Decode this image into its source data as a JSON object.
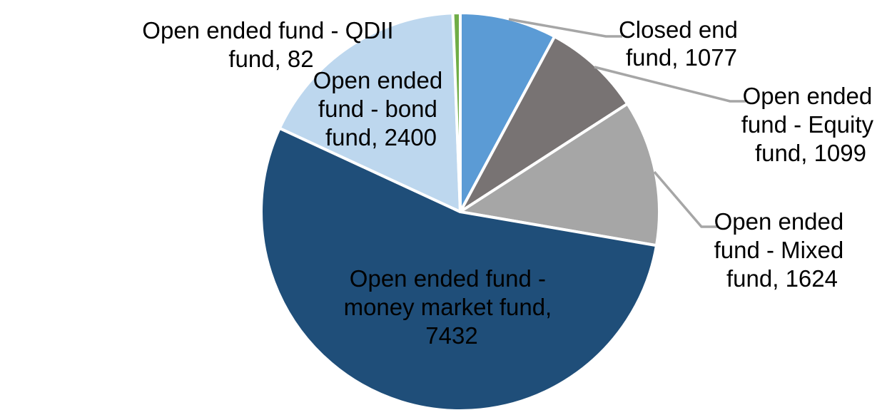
{
  "chart_data": {
    "type": "pie",
    "title": "",
    "total": 13714,
    "start_angle_deg": 0,
    "direction": "clockwise",
    "legend_position": "none",
    "separator_color": "#FFFFFF",
    "leader_line_color": "#A6A6A6",
    "segments": [
      {
        "label": "Closed end fund",
        "value": 1077,
        "color": "#5B9BD5",
        "label_color": "#000000",
        "label_lines": [
          "Closed end",
          "fund, 1077"
        ]
      },
      {
        "label": "Open ended fund - Equity fund",
        "value": 1099,
        "color": "#787373",
        "label_color": "#000000",
        "label_lines": [
          "Open ended",
          "fund - Equity",
          "fund, 1099"
        ]
      },
      {
        "label": "Open ended fund - Mixed fund",
        "value": 1624,
        "color": "#A6A6A6",
        "label_color": "#000000",
        "label_lines": [
          "Open ended",
          "fund - Mixed",
          "fund, 1624"
        ]
      },
      {
        "label": "Open ended fund - money market fund",
        "value": 7432,
        "color": "#1F4E79",
        "label_color": "#FFFFFF",
        "label_lines": [
          "Open ended fund -",
          "money market fund,",
          "7432"
        ]
      },
      {
        "label": "Open ended fund - bond fund",
        "value": 2400,
        "color": "#BDD7EE",
        "label_color": "#000000",
        "label_lines": [
          "Open ended",
          "fund - bond",
          "fund, 2400"
        ]
      },
      {
        "label": "Open ended fund - QDII fund",
        "value": 82,
        "color": "#70AD47",
        "label_color": "#000000",
        "label_lines": [
          "Open ended fund - QDII",
          "fund, 82"
        ]
      }
    ]
  }
}
